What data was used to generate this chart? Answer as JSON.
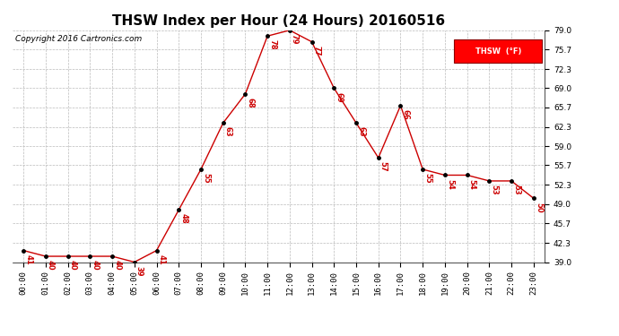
{
  "title": "THSW Index per Hour (24 Hours) 20160516",
  "copyright": "Copyright 2016 Cartronics.com",
  "legend_label": "THSW  (°F)",
  "hours": [
    0,
    1,
    2,
    3,
    4,
    5,
    6,
    7,
    8,
    9,
    10,
    11,
    12,
    13,
    14,
    15,
    16,
    17,
    18,
    19,
    20,
    21,
    22,
    23
  ],
  "values": [
    41,
    40,
    40,
    40,
    40,
    39,
    41,
    48,
    55,
    63,
    68,
    78,
    79,
    77,
    69,
    63,
    57,
    66,
    55,
    54,
    54,
    53,
    53,
    50
  ],
  "hour_labels": [
    "00:00",
    "01:00",
    "02:00",
    "03:00",
    "04:00",
    "05:00",
    "06:00",
    "07:00",
    "08:00",
    "09:00",
    "10:00",
    "11:00",
    "12:00",
    "13:00",
    "14:00",
    "15:00",
    "16:00",
    "17:00",
    "18:00",
    "19:00",
    "20:00",
    "21:00",
    "22:00",
    "23:00"
  ],
  "ylim": [
    39.0,
    79.0
  ],
  "yticks": [
    39.0,
    42.3,
    45.7,
    49.0,
    52.3,
    55.7,
    59.0,
    62.3,
    65.7,
    69.0,
    72.3,
    75.7,
    79.0
  ],
  "line_color": "#cc0000",
  "marker_color": "#000000",
  "label_color": "#cc0000",
  "bg_color": "#ffffff",
  "grid_color": "#bbbbbb",
  "title_fontsize": 11,
  "label_fontsize": 6,
  "tick_fontsize": 6.5,
  "copyright_fontsize": 6.5
}
